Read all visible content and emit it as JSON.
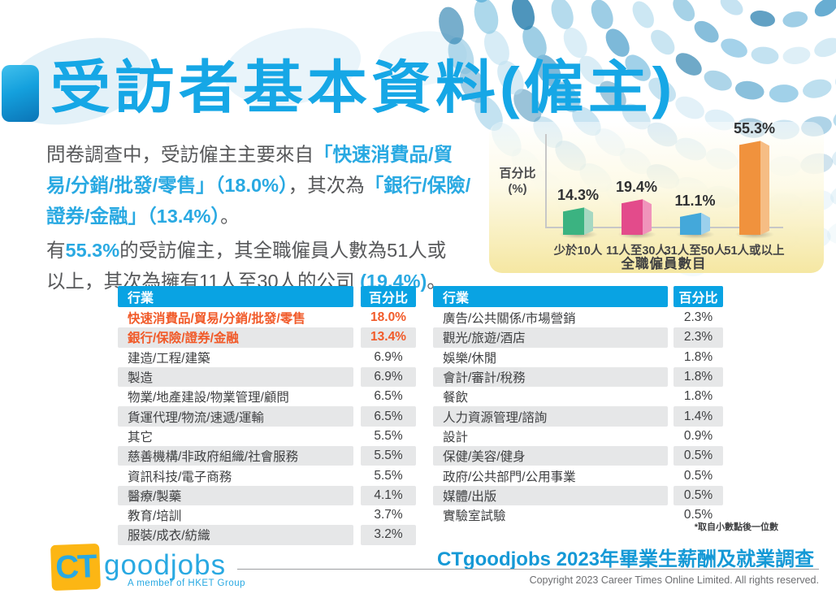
{
  "title": "受訪者基本資料(僱主)",
  "intro": {
    "p1": {
      "s0": "問卷調查中，受訪僱主主要來自",
      "s1": "「快速消費品/貿易/分銷/批發/零售」（18.0%）",
      "s2": "，其次為",
      "s3": "「銀行/保險/證券/金融」（13.4%）",
      "s4": "。"
    },
    "p2": {
      "s0": "有",
      "s1": "55.3%",
      "s2": "的受訪僱主，其全職僱員人數為51人或以上，其次為擁有11人至30人的公司 ",
      "s3": "(19.4%)",
      "s4": "。"
    }
  },
  "chart_data": {
    "type": "bar",
    "title": "",
    "ylabel": "百分比 (%)",
    "ylabel_line1": "百分比",
    "ylabel_line2": "(%)",
    "xlabel": "全職僱員數目",
    "categories": [
      "少於10人",
      "11人至30人",
      "31人至50人",
      "51人或以上"
    ],
    "values": [
      14.3,
      19.4,
      11.1,
      55.3
    ],
    "value_labels": [
      "14.3%",
      "19.4%",
      "11.1%",
      "55.3%"
    ],
    "bar_colors": [
      {
        "front": "#3bb381",
        "side": "#a6d8c2"
      },
      {
        "front": "#e34b8b",
        "side": "#f094bb"
      },
      {
        "front": "#44a8da",
        "side": "#9bd0ec"
      },
      {
        "front": "#f0923d",
        "side": "#f6bd84"
      }
    ],
    "ylim": [
      0,
      60
    ],
    "grid": false,
    "legend": "none"
  },
  "tables": {
    "left": {
      "headers": [
        "行業",
        "百分比"
      ],
      "rows": [
        {
          "industry": "快速消費品/貿易/分銷/批發/零售",
          "pct": "18.0%",
          "highlight": true
        },
        {
          "industry": "銀行/保險/證券/金融",
          "pct": "13.4%",
          "highlight": true
        },
        {
          "industry": "建造/工程/建築",
          "pct": "6.9%",
          "highlight": false
        },
        {
          "industry": "製造",
          "pct": "6.9%",
          "highlight": false
        },
        {
          "industry": "物業/地產建設/物業管理/顧問",
          "pct": "6.5%",
          "highlight": false
        },
        {
          "industry": "貨運代理/物流/速遞/運輸",
          "pct": "6.5%",
          "highlight": false
        },
        {
          "industry": "其它",
          "pct": "5.5%",
          "highlight": false
        },
        {
          "industry": "慈善機構/非政府組織/社會服務",
          "pct": "5.5%",
          "highlight": false
        },
        {
          "industry": "資訊科技/電子商務",
          "pct": "5.5%",
          "highlight": false
        },
        {
          "industry": "醫療/製藥",
          "pct": "4.1%",
          "highlight": false
        },
        {
          "industry": "教育/培訓",
          "pct": "3.7%",
          "highlight": false
        },
        {
          "industry": "服裝/成衣/紡織",
          "pct": "3.2%",
          "highlight": false
        }
      ]
    },
    "right": {
      "headers": [
        "行業",
        "百分比"
      ],
      "rows": [
        {
          "industry": "廣告/公共關係/市場營銷",
          "pct": "2.3%",
          "highlight": false
        },
        {
          "industry": "觀光/旅遊/酒店",
          "pct": "2.3%",
          "highlight": false
        },
        {
          "industry": "娛樂/休閒",
          "pct": "1.8%",
          "highlight": false
        },
        {
          "industry": "會計/審計/稅務",
          "pct": "1.8%",
          "highlight": false
        },
        {
          "industry": "餐飲",
          "pct": "1.8%",
          "highlight": false
        },
        {
          "industry": "人力資源管理/諮詢",
          "pct": "1.4%",
          "highlight": false
        },
        {
          "industry": "設計",
          "pct": "0.9%",
          "highlight": false
        },
        {
          "industry": "保健/美容/健身",
          "pct": "0.5%",
          "highlight": false
        },
        {
          "industry": "政府/公共部門/公用事業",
          "pct": "0.5%",
          "highlight": false
        },
        {
          "industry": "媒體/出版",
          "pct": "0.5%",
          "highlight": false
        },
        {
          "industry": "實驗室試驗",
          "pct": "0.5%",
          "highlight": false
        }
      ]
    }
  },
  "footnote": "*取自小數點後一位數",
  "footer": {
    "logo_ct": "CT",
    "logo_goodjobs": "goodjobs",
    "logo_member": "A member of HKET Group",
    "survey_title": "CTgoodjobs 2023年畢業生薪酬及就業調查",
    "copyright": "Copyright 2023 Career Times Online Limited. All rights reserved."
  },
  "colors": {
    "accent_blue": "#16a7e6",
    "table_header_blue": "#09a3e3",
    "highlight_orange": "#f15a29",
    "stripe_gray": "#e6e7e8",
    "body_text_gray": "#57585a",
    "logo_yellow": "#fcb614",
    "panel_yellow": "#f5e7a2"
  }
}
